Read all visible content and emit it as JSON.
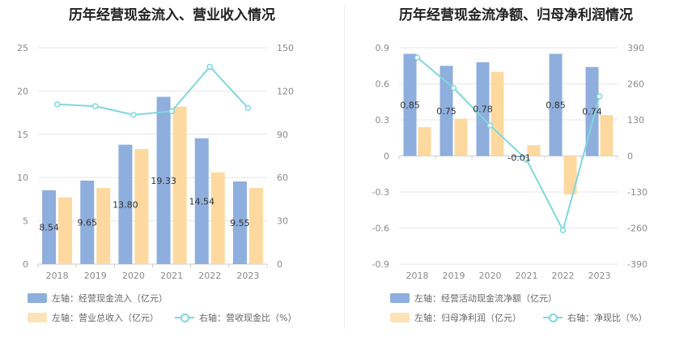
{
  "colors": {
    "bar_primary": "#8eaedd",
    "bar_secondary": "#fdd9a0",
    "line": "#7fd8dc",
    "grid": "#e6e6e6",
    "axis": "#cccccc"
  },
  "chart_data": [
    {
      "type": "bar",
      "title": "历年经营现金流入、营业收入情况",
      "categories": [
        "2018",
        "2019",
        "2020",
        "2021",
        "2022",
        "2023"
      ],
      "series": [
        {
          "name": "左轴：经营现金流入（亿元）",
          "axis": "left",
          "kind": "bar",
          "values": [
            8.54,
            9.65,
            13.8,
            19.33,
            14.54,
            9.55
          ],
          "labels": [
            "8.54",
            "9.65",
            "13.80",
            "19.33",
            "14.54",
            "9.55"
          ]
        },
        {
          "name": "左轴：营业总收入（亿元）",
          "axis": "left",
          "kind": "bar",
          "values": [
            7.7,
            8.8,
            13.3,
            18.2,
            10.6,
            8.8
          ]
        },
        {
          "name": "右轴：营收现金比（%）",
          "axis": "right",
          "kind": "line",
          "values": [
            110.8,
            109.5,
            103.5,
            106.0,
            136.9,
            108.3
          ]
        }
      ],
      "left_axis": {
        "min": 0,
        "max": 25,
        "ticks": [
          "0",
          "5",
          "10",
          "15",
          "20",
          "25"
        ]
      },
      "right_axis": {
        "min": 0,
        "max": 150,
        "ticks": [
          "0",
          "30",
          "60",
          "90",
          "120",
          "150"
        ]
      }
    },
    {
      "type": "bar",
      "title": "历年经营现金流净额、归母净利润情况",
      "categories": [
        "2018",
        "2019",
        "2020",
        "2021",
        "2022",
        "2023"
      ],
      "series": [
        {
          "name": "左轴：经营活动现金流净额（亿元）",
          "axis": "left",
          "kind": "bar",
          "values": [
            0.85,
            0.75,
            0.78,
            -0.01,
            0.85,
            0.74
          ],
          "labels": [
            "0.85",
            "0.75",
            "0.78",
            "-0.01",
            "0.85",
            "0.74"
          ]
        },
        {
          "name": "左轴：归母净利润（亿元）",
          "axis": "left",
          "kind": "bar",
          "values": [
            0.24,
            0.31,
            0.7,
            0.09,
            -0.32,
            0.34
          ]
        },
        {
          "name": "右轴：净现比（%）",
          "axis": "right",
          "kind": "line",
          "values": [
            355,
            245,
            110,
            -13,
            -268,
            215
          ]
        }
      ],
      "left_axis": {
        "min": -0.9,
        "max": 0.9,
        "ticks": [
          "-0.9",
          "-0.6",
          "-0.3",
          "0",
          "0.3",
          "0.6",
          "0.9"
        ]
      },
      "right_axis": {
        "min": -390,
        "max": 390,
        "ticks": [
          "-390",
          "-260",
          "-130",
          "0",
          "130",
          "260",
          "390"
        ]
      }
    }
  ]
}
